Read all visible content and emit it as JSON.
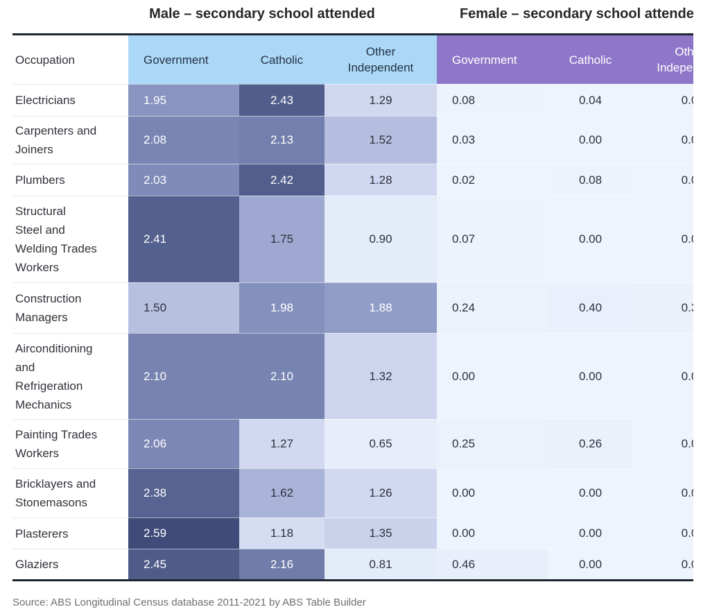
{
  "titles": {
    "male": "Male – secondary school attended",
    "female": "Female – secondary school attended"
  },
  "table": {
    "occupation_header": "Occupation",
    "male_columns": [
      "Government",
      "Catholic",
      "Other\nIndependent"
    ],
    "female_columns": [
      "Government",
      "Catholic",
      "Other\nIndependent"
    ]
  },
  "source": "Source: ABS Longitudinal Census database 2011-2021 by ABS Table Builder",
  "colors": {
    "male_header_bg": "#acd8f8",
    "male_header_text": "#243142",
    "female_header_bg": "#8e77c8",
    "female_header_text": "#ffffff",
    "rule": "#1d2531",
    "heat_low": "#eef4fc",
    "heat_high": "#3d4a78",
    "value_text_dark": "#2c323e",
    "value_text_light": "#ffffff"
  },
  "chart_data": {
    "type": "heatmap",
    "row_header": "Occupation",
    "column_groups": [
      {
        "label": "Male – secondary school attended",
        "columns": [
          "Government",
          "Catholic",
          "Other Independent"
        ]
      },
      {
        "label": "Female – secondary school attended",
        "columns": [
          "Government",
          "Catholic",
          "Other Independent"
        ]
      }
    ],
    "rows": [
      {
        "occupation": "Electricians",
        "label_lines": "Electricians",
        "male": [
          "1.95",
          "2.43",
          "1.29"
        ],
        "female": [
          "0.08",
          "0.04",
          "0.0"
        ]
      },
      {
        "occupation": "Carpenters and Joiners",
        "label_lines": "Carpenters and\nJoiners",
        "male": [
          "2.08",
          "2.13",
          "1.52"
        ],
        "female": [
          "0.03",
          "0.00",
          "0.0"
        ]
      },
      {
        "occupation": "Plumbers",
        "label_lines": "Plumbers",
        "male": [
          "2.03",
          "2.42",
          "1.28"
        ],
        "female": [
          "0.02",
          "0.08",
          "0.0"
        ]
      },
      {
        "occupation": "Structural Steel and Welding Trades Workers",
        "label_lines": "Structural\nSteel and\nWelding Trades\nWorkers",
        "male": [
          "2.41",
          "1.75",
          "0.90"
        ],
        "female": [
          "0.07",
          "0.00",
          "0.0"
        ]
      },
      {
        "occupation": "Construction Managers",
        "label_lines": "Construction\nManagers",
        "male": [
          "1.50",
          "1.98",
          "1.88"
        ],
        "female": [
          "0.24",
          "0.40",
          "0.3"
        ]
      },
      {
        "occupation": "Airconditioning and Refrigeration Mechanics",
        "label_lines": "Airconditioning\nand\nRefrigeration\nMechanics",
        "male": [
          "2.10",
          "2.10",
          "1.32"
        ],
        "female": [
          "0.00",
          "0.00",
          "0.0"
        ]
      },
      {
        "occupation": "Painting Trades Workers",
        "label_lines": "Painting Trades\nWorkers",
        "male": [
          "2.06",
          "1.27",
          "0.65"
        ],
        "female": [
          "0.25",
          "0.26",
          "0.0"
        ]
      },
      {
        "occupation": "Bricklayers and Stonemasons",
        "label_lines": "Bricklayers and\nStonemasons",
        "male": [
          "2.38",
          "1.62",
          "1.26"
        ],
        "female": [
          "0.00",
          "0.00",
          "0.0"
        ]
      },
      {
        "occupation": "Plasterers",
        "label_lines": "Plasterers",
        "male": [
          "2.59",
          "1.18",
          "1.35"
        ],
        "female": [
          "0.00",
          "0.00",
          "0.0"
        ]
      },
      {
        "occupation": "Glaziers",
        "label_lines": "Glaziers",
        "male": [
          "2.45",
          "2.16",
          "0.81"
        ],
        "female": [
          "0.46",
          "0.00",
          "0.0"
        ]
      }
    ],
    "color_scale": {
      "min": 0.0,
      "max": 2.59,
      "low": "#eef4fc",
      "high": "#3d4a78",
      "white_text_threshold": 1.85
    },
    "heat_anchors": [
      [
        0.0,
        [
          238,
          244,
          252
        ]
      ],
      [
        0.9,
        [
          228,
          235,
          249
        ]
      ],
      [
        1.3,
        [
          208,
          214,
          239
        ]
      ],
      [
        1.6,
        [
          172,
          181,
          217
        ]
      ],
      [
        1.9,
        [
          143,
          154,
          198
        ]
      ],
      [
        2.15,
        [
          113,
          125,
          171
        ]
      ],
      [
        2.45,
        [
          79,
          91,
          137
        ]
      ],
      [
        2.6,
        [
          62,
          75,
          121
        ]
      ]
    ]
  }
}
